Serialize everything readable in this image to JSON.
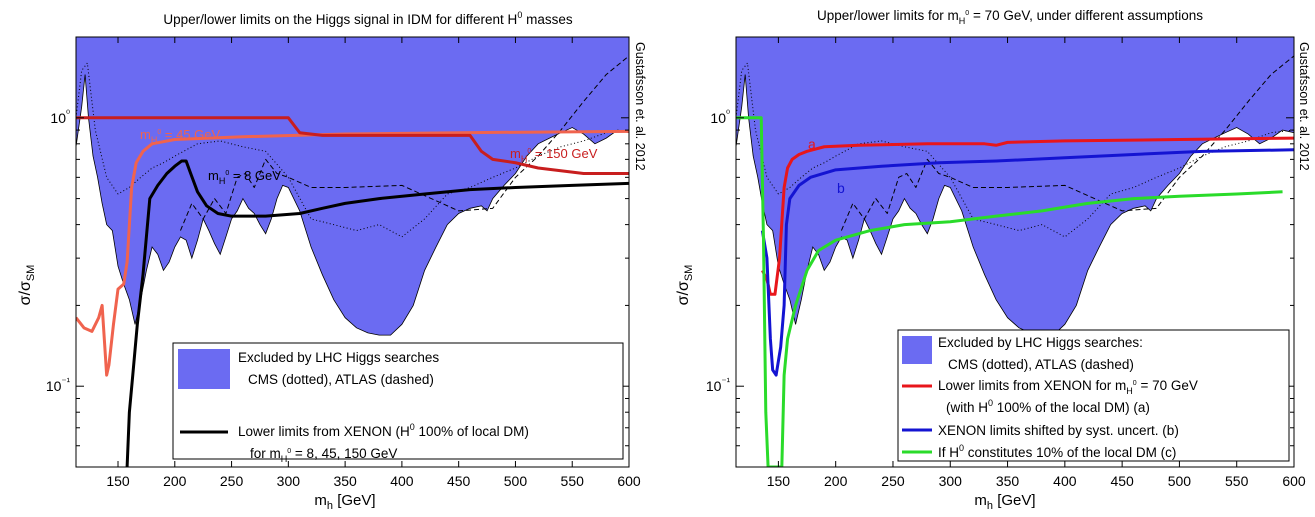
{
  "chart_data": [
    {
      "type": "line",
      "title": "Upper/lower limits on the Higgs signal in IDM for different H⁰ masses",
      "xlabel": "m_h [GeV]",
      "ylabel": "σ/σ_SM",
      "xscale": "linear",
      "yscale": "log",
      "xlim": [
        113,
        600
      ],
      "ylim": [
        0.05,
        2
      ],
      "x_ticks": [
        "150",
        "200",
        "250",
        "300",
        "350",
        "400",
        "450",
        "500",
        "550",
        "600"
      ],
      "y_ticks": [
        "10⁻¹",
        "10⁰"
      ],
      "side_label": "Gustafsson et. al. 2012",
      "excluded_region": {
        "color": "#6b6bf2",
        "boundary": [
          [
            113,
            0.78
          ],
          [
            118,
            1.1
          ],
          [
            121,
            1.45
          ],
          [
            124,
            1.0
          ],
          [
            128,
            0.72
          ],
          [
            132,
            0.6
          ],
          [
            136,
            0.48
          ],
          [
            140,
            0.4
          ],
          [
            145,
            0.38
          ],
          [
            150,
            0.28
          ],
          [
            155,
            0.24
          ],
          [
            160,
            0.21
          ],
          [
            165,
            0.17
          ],
          [
            170,
            0.21
          ],
          [
            175,
            0.27
          ],
          [
            180,
            0.33
          ],
          [
            185,
            0.31
          ],
          [
            190,
            0.27
          ],
          [
            195,
            0.29
          ],
          [
            200,
            0.33
          ],
          [
            205,
            0.36
          ],
          [
            210,
            0.35
          ],
          [
            215,
            0.3
          ],
          [
            220,
            0.35
          ],
          [
            225,
            0.42
          ],
          [
            230,
            0.38
          ],
          [
            235,
            0.34
          ],
          [
            240,
            0.31
          ],
          [
            245,
            0.36
          ],
          [
            250,
            0.42
          ],
          [
            255,
            0.45
          ],
          [
            260,
            0.5
          ],
          [
            265,
            0.46
          ],
          [
            270,
            0.44
          ],
          [
            275,
            0.4
          ],
          [
            280,
            0.37
          ],
          [
            285,
            0.42
          ],
          [
            290,
            0.5
          ],
          [
            295,
            0.56
          ],
          [
            300,
            0.55
          ],
          [
            310,
            0.45
          ],
          [
            320,
            0.33
          ],
          [
            330,
            0.26
          ],
          [
            340,
            0.21
          ],
          [
            350,
            0.18
          ],
          [
            360,
            0.165
          ],
          [
            370,
            0.158
          ],
          [
            380,
            0.155
          ],
          [
            390,
            0.155
          ],
          [
            400,
            0.17
          ],
          [
            410,
            0.2
          ],
          [
            420,
            0.27
          ],
          [
            430,
            0.33
          ],
          [
            440,
            0.4
          ],
          [
            450,
            0.44
          ],
          [
            460,
            0.46
          ],
          [
            470,
            0.47
          ],
          [
            475,
            0.45
          ],
          [
            480,
            0.5
          ],
          [
            490,
            0.56
          ],
          [
            500,
            0.62
          ],
          [
            510,
            0.72
          ],
          [
            520,
            0.8
          ],
          [
            530,
            0.84
          ],
          [
            540,
            0.88
          ],
          [
            550,
            0.92
          ],
          [
            560,
            0.87
          ],
          [
            570,
            0.8
          ],
          [
            580,
            0.84
          ],
          [
            590,
            0.9
          ],
          [
            600,
            0.88
          ]
        ]
      },
      "series": [
        {
          "name": "CMS",
          "color": "#000000",
          "style": "dotted",
          "points": [
            [
              113,
              1.0
            ],
            [
              118,
              1.5
            ],
            [
              123,
              1.6
            ],
            [
              130,
              0.9
            ],
            [
              140,
              0.6
            ],
            [
              150,
              0.52
            ],
            [
              160,
              0.55
            ],
            [
              170,
              0.6
            ],
            [
              180,
              0.65
            ],
            [
              190,
              0.68
            ],
            [
              200,
              0.72
            ],
            [
              220,
              0.8
            ],
            [
              240,
              0.82
            ],
            [
              260,
              0.78
            ],
            [
              280,
              0.75
            ],
            [
              300,
              0.6
            ],
            [
              320,
              0.42
            ],
            [
              340,
              0.4
            ],
            [
              360,
              0.38
            ],
            [
              380,
              0.4
            ],
            [
              400,
              0.36
            ],
            [
              420,
              0.42
            ],
            [
              440,
              0.52
            ],
            [
              460,
              0.55
            ],
            [
              480,
              0.6
            ],
            [
              500,
              0.65
            ],
            [
              520,
              0.72
            ],
            [
              540,
              0.78
            ],
            [
              560,
              0.82
            ],
            [
              580,
              0.88
            ],
            [
              600,
              0.9
            ]
          ]
        },
        {
          "name": "ATLAS",
          "color": "#000000",
          "style": "dashed",
          "points": [
            [
              205,
              0.38
            ],
            [
              215,
              0.48
            ],
            [
              225,
              0.42
            ],
            [
              235,
              0.5
            ],
            [
              245,
              0.44
            ],
            [
              255,
              0.6
            ],
            [
              262,
              0.62
            ],
            [
              270,
              0.55
            ],
            [
              280,
              0.7
            ],
            [
              290,
              0.62
            ],
            [
              300,
              0.6
            ],
            [
              320,
              0.55
            ],
            [
              350,
              0.55
            ],
            [
              400,
              0.56
            ],
            [
              450,
              0.45
            ],
            [
              480,
              0.46
            ],
            [
              500,
              0.6
            ],
            [
              520,
              0.72
            ],
            [
              540,
              0.9
            ],
            [
              560,
              1.15
            ],
            [
              580,
              1.45
            ],
            [
              600,
              1.7
            ]
          ]
        },
        {
          "name": "m_H0 = 8 GeV",
          "color": "#000000",
          "points": [
            [
              158,
              0.05
            ],
            [
              160,
              0.08
            ],
            [
              163,
              0.11
            ],
            [
              167,
              0.17
            ],
            [
              172,
              0.26
            ],
            [
              178,
              0.5
            ],
            [
              185,
              0.56
            ],
            [
              193,
              0.62
            ],
            [
              200,
              0.66
            ],
            [
              206,
              0.69
            ],
            [
              210,
              0.69
            ],
            [
              214,
              0.62
            ],
            [
              220,
              0.53
            ],
            [
              228,
              0.47
            ],
            [
              238,
              0.44
            ],
            [
              250,
              0.43
            ],
            [
              280,
              0.43
            ],
            [
              310,
              0.44
            ],
            [
              330,
              0.46
            ],
            [
              350,
              0.48
            ],
            [
              380,
              0.5
            ],
            [
              420,
              0.52
            ],
            [
              460,
              0.54
            ],
            [
              500,
              0.55
            ],
            [
              550,
              0.56
            ],
            [
              600,
              0.57
            ]
          ]
        },
        {
          "name": "m_H0 = 45 GeV",
          "color": "#f0634e",
          "points": [
            [
              113,
              0.18
            ],
            [
              120,
              0.165
            ],
            [
              127,
              0.16
            ],
            [
              133,
              0.18
            ],
            [
              136,
              0.2
            ],
            [
              140,
              0.11
            ],
            [
              142,
              0.12
            ],
            [
              146,
              0.17
            ],
            [
              150,
              0.23
            ],
            [
              155,
              0.24
            ],
            [
              158,
              0.29
            ],
            [
              162,
              0.55
            ],
            [
              166,
              0.68
            ],
            [
              172,
              0.75
            ],
            [
              180,
              0.8
            ],
            [
              200,
              0.83
            ],
            [
              260,
              0.85
            ],
            [
              350,
              0.87
            ],
            [
              450,
              0.88
            ],
            [
              600,
              0.89
            ]
          ]
        },
        {
          "name": "m_H0 = 150 GeV",
          "color": "#c81e1e",
          "points": [
            [
              113,
              1.0
            ],
            [
              300,
              1.0
            ],
            [
              310,
              0.88
            ],
            [
              330,
              0.86
            ],
            [
              350,
              0.86
            ],
            [
              400,
              0.86
            ],
            [
              460,
              0.86
            ],
            [
              470,
              0.75
            ],
            [
              480,
              0.7
            ],
            [
              500,
              0.68
            ],
            [
              520,
              0.65
            ],
            [
              560,
              0.62
            ],
            [
              600,
              0.62
            ]
          ]
        }
      ],
      "annotations": {
        "m8": {
          "main": "m",
          "sub": "H",
          "sup": "0",
          "rest": " = 8 GeV",
          "color": "#000000"
        },
        "m45": {
          "main": "m",
          "sub": "H",
          "sup": "0",
          "rest": " = 45 GeV",
          "color": "#f0634e"
        },
        "m150": {
          "main": "m",
          "sub": "H",
          "sup": "0",
          "rest": " = 150 GeV",
          "color": "#c81e1e"
        }
      },
      "legend": {
        "placement": "bottom-right",
        "entries": [
          {
            "line1": "Excluded by LHC Higgs searches",
            "line2": "CMS (dotted), ATLAS (dashed)"
          },
          {
            "line1": "Lower limits from XENON (H⁰ 100% of local DM)",
            "line2": "for mH⁰ = 8, 45, 150 GeV"
          }
        ]
      }
    },
    {
      "type": "line",
      "title": "Upper/lower limits for m_H0 = 70 GeV, under different assumptions",
      "xlabel": "m_h [GeV]",
      "ylabel": "σ/σ_SM",
      "xscale": "linear",
      "yscale": "log",
      "xlim": [
        113,
        600
      ],
      "ylim": [
        0.05,
        2
      ],
      "x_ticks": [
        "150",
        "200",
        "250",
        "300",
        "350",
        "400",
        "450",
        "500",
        "550",
        "600"
      ],
      "y_ticks": [
        "10⁻¹",
        "10⁰"
      ],
      "side_label": "Gustafsson et. al. 2012",
      "series": [
        {
          "name": "Lower limits from XENON for m_H0 = 70 GeV (with H⁰ 100% of the local DM) (a)",
          "label": "a",
          "color": "#e8161b",
          "points": [
            [
              136,
              0.27
            ],
            [
              140,
              0.25
            ],
            [
              143,
              0.22
            ],
            [
              147,
              0.22
            ],
            [
              151,
              0.3
            ],
            [
              155,
              0.55
            ],
            [
              158,
              0.65
            ],
            [
              162,
              0.7
            ],
            [
              168,
              0.73
            ],
            [
              175,
              0.75
            ],
            [
              190,
              0.78
            ],
            [
              220,
              0.79
            ],
            [
              280,
              0.8
            ],
            [
              330,
              0.8
            ],
            [
              340,
              0.79
            ],
            [
              350,
              0.81
            ],
            [
              400,
              0.82
            ],
            [
              500,
              0.83
            ],
            [
              600,
              0.84
            ]
          ]
        },
        {
          "name": "XENON limits shifted by syst. uncert. (b)",
          "label": "b",
          "color": "#1414d2",
          "points": [
            [
              136,
              0.38
            ],
            [
              140,
              0.3
            ],
            [
              143,
              0.15
            ],
            [
              145,
              0.115
            ],
            [
              148,
              0.11
            ],
            [
              152,
              0.14
            ],
            [
              155,
              0.2
            ],
            [
              157,
              0.4
            ],
            [
              160,
              0.5
            ],
            [
              168,
              0.56
            ],
            [
              178,
              0.6
            ],
            [
              200,
              0.64
            ],
            [
              240,
              0.66
            ],
            [
              290,
              0.68
            ],
            [
              340,
              0.69
            ],
            [
              400,
              0.71
            ],
            [
              460,
              0.73
            ],
            [
              520,
              0.75
            ],
            [
              600,
              0.76
            ]
          ]
        },
        {
          "name": "If H⁰ constitutes 10% of the local DM (c)",
          "color": "#2adb2a",
          "points": [
            [
              113,
              1.0
            ],
            [
              135,
              1.0
            ],
            [
              137,
              0.35
            ],
            [
              139,
              0.08
            ],
            [
              141,
              0.05
            ],
            [
              153,
              0.05
            ],
            [
              155,
              0.11
            ],
            [
              158,
              0.15
            ],
            [
              165,
              0.2
            ],
            [
              175,
              0.27
            ],
            [
              185,
              0.32
            ],
            [
              200,
              0.35
            ],
            [
              230,
              0.38
            ],
            [
              260,
              0.4
            ],
            [
              300,
              0.41
            ],
            [
              340,
              0.43
            ],
            [
              380,
              0.45
            ],
            [
              420,
              0.48
            ],
            [
              460,
              0.5
            ],
            [
              500,
              0.51
            ],
            [
              550,
              0.52
            ],
            [
              590,
              0.53
            ]
          ]
        }
      ],
      "annotations": {
        "a": {
          "text": "a",
          "color": "#e8161b"
        },
        "b": {
          "text": "b",
          "color": "#1414d2"
        }
      },
      "legend": {
        "placement": "bottom-right",
        "entries": [
          {
            "line1": "Excluded by LHC Higgs searches:",
            "line2": "CMS (dotted), ATLAS (dashed)"
          },
          {
            "line1": "Lower limits from XENON for mH⁰ = 70 GeV",
            "line2": "(with H⁰ 100% of the local DM) (a)"
          },
          {
            "line1": "XENON limits shifted by syst. uncert. (b)"
          },
          {
            "line1": "If H⁰ constitutes 10% of the local DM (c)"
          }
        ]
      }
    }
  ]
}
